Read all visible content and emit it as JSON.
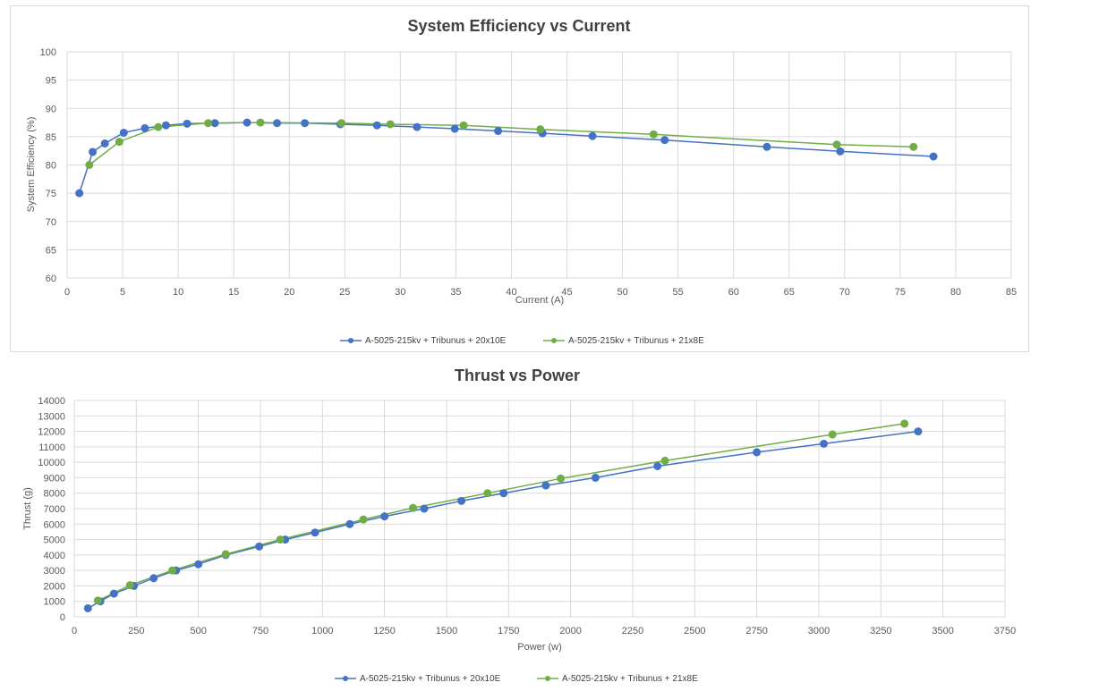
{
  "chart_data": [
    {
      "type": "line",
      "title": "System Efficiency vs Current",
      "xlabel": "Current (A)",
      "ylabel": "System Efficiency (%)",
      "xlim": [
        0,
        85
      ],
      "ylim": [
        60,
        100
      ],
      "xticks": [
        0,
        5,
        10,
        15,
        20,
        25,
        30,
        35,
        40,
        45,
        50,
        55,
        60,
        65,
        70,
        75,
        80,
        85
      ],
      "yticks": [
        60,
        65,
        70,
        75,
        80,
        85,
        90,
        95,
        100
      ],
      "grid": true,
      "legend_position": "bottom",
      "series": [
        {
          "name": "A-5025-215kv + Tribunus + 20x10E",
          "color": "#4472c4",
          "x": [
            1.1,
            2.3,
            3.4,
            5.1,
            7.0,
            8.9,
            10.8,
            13.3,
            16.2,
            18.9,
            21.4,
            24.6,
            27.9,
            31.5,
            34.9,
            38.8,
            42.8,
            47.3,
            53.8,
            63.0,
            69.6,
            78.0
          ],
          "y": [
            75.0,
            82.3,
            83.8,
            85.7,
            86.5,
            87.0,
            87.3,
            87.4,
            87.5,
            87.4,
            87.4,
            87.2,
            87.0,
            86.7,
            86.4,
            86.0,
            85.6,
            85.1,
            84.4,
            83.2,
            82.4,
            81.5
          ]
        },
        {
          "name": "A-5025-215kv + Tribunus + 21x8E",
          "color": "#70ad47",
          "x": [
            2.0,
            4.7,
            8.2,
            12.7,
            17.4,
            24.7,
            29.1,
            35.7,
            42.6,
            52.8,
            69.3,
            76.2
          ],
          "y": [
            80.0,
            84.1,
            86.7,
            87.4,
            87.5,
            87.4,
            87.2,
            87.0,
            86.3,
            85.4,
            83.6,
            83.2
          ]
        }
      ]
    },
    {
      "type": "line",
      "title": "Thrust  vs Power",
      "xlabel": "Power (w)",
      "ylabel": "Thrust (g)",
      "xlim": [
        0,
        3750
      ],
      "ylim": [
        0,
        14000
      ],
      "xticks": [
        0,
        250,
        500,
        750,
        1000,
        1250,
        1500,
        1750,
        2000,
        2250,
        2500,
        2750,
        3000,
        3250,
        3500,
        3750
      ],
      "yticks": [
        0,
        1000,
        2000,
        3000,
        4000,
        5000,
        6000,
        7000,
        8000,
        9000,
        10000,
        11000,
        12000,
        13000,
        14000
      ],
      "grid": true,
      "legend_position": "bottom",
      "series": [
        {
          "name": "A-5025-215kv + Tribunus + 20x10E",
          "color": "#4472c4",
          "x": [
            55,
            105,
            160,
            240,
            320,
            410,
            500,
            610,
            745,
            850,
            970,
            1110,
            1250,
            1410,
            1560,
            1730,
            1900,
            2100,
            2350,
            2750,
            3020,
            3400
          ],
          "y": [
            550,
            1000,
            1500,
            2000,
            2500,
            3000,
            3400,
            4000,
            4550,
            5000,
            5450,
            6000,
            6500,
            7000,
            7500,
            8000,
            8500,
            9000,
            9750,
            10650,
            11200,
            12000
          ]
        },
        {
          "name": "A-5025-215kv + Tribunus + 21x8E",
          "color": "#70ad47",
          "x": [
            95,
            225,
            395,
            610,
            830,
            1165,
            1365,
            1665,
            1960,
            2380,
            3055,
            3345
          ],
          "y": [
            1050,
            2050,
            3000,
            4050,
            5000,
            6300,
            7050,
            8000,
            8950,
            10100,
            11800,
            12500
          ]
        }
      ]
    }
  ]
}
